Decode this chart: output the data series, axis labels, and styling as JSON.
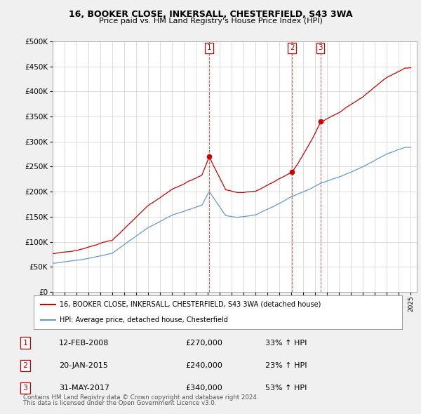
{
  "title_line1": "16, BOOKER CLOSE, INKERSALL, CHESTERFIELD, S43 3WA",
  "title_line2": "Price paid vs. HM Land Registry's House Price Index (HPI)",
  "legend_label_red": "16, BOOKER CLOSE, INKERSALL, CHESTERFIELD, S43 3WA (detached house)",
  "legend_label_blue": "HPI: Average price, detached house, Chesterfield",
  "footer_line1": "Contains HM Land Registry data © Crown copyright and database right 2024.",
  "footer_line2": "This data is licensed under the Open Government Licence v3.0.",
  "transactions": [
    {
      "num": 1,
      "date": "12-FEB-2008",
      "price": "£270,000",
      "hpi": "33% ↑ HPI",
      "x": 2008.11
    },
    {
      "num": 2,
      "date": "20-JAN-2015",
      "price": "£240,000",
      "hpi": "23% ↑ HPI",
      "x": 2015.05
    },
    {
      "num": 3,
      "date": "31-MAY-2017",
      "price": "£340,000",
      "hpi": "53% ↑ HPI",
      "x": 2017.42
    }
  ],
  "transaction_values": [
    270000,
    240000,
    340000
  ],
  "ylim": [
    0,
    500000
  ],
  "yticks": [
    0,
    50000,
    100000,
    150000,
    200000,
    250000,
    300000,
    350000,
    400000,
    450000,
    500000
  ],
  "background_color": "#f0f0f0",
  "plot_bg_color": "#ffffff",
  "red_color": "#cc0000",
  "blue_color": "#6699cc",
  "hpi_x": [
    1995.0,
    1997.0,
    2000.0,
    2003.0,
    2005.0,
    2007.5,
    2008.11,
    2009.5,
    2010.5,
    2012.0,
    2013.5,
    2015.05,
    2016.5,
    2017.42,
    2019.0,
    2021.0,
    2023.0,
    2024.5
  ],
  "hpi_y": [
    57000,
    63000,
    78000,
    130000,
    155000,
    175000,
    202703,
    155000,
    152000,
    158000,
    175000,
    195122,
    210000,
    222222,
    235000,
    255000,
    280000,
    292000
  ]
}
